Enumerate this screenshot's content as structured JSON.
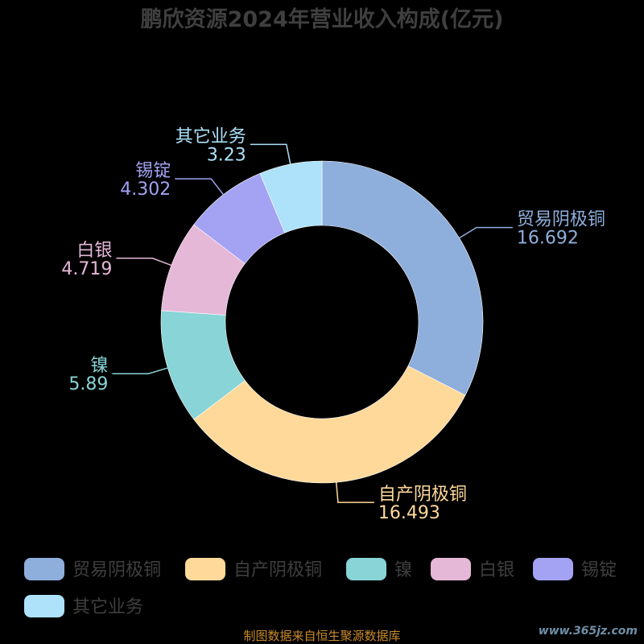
{
  "chart_data": {
    "type": "pie",
    "title": "鹏欣资源2024年营业收入构成(亿元)",
    "categories": [
      "贸易阴极铜",
      "自产阴极铜",
      "镍",
      "白银",
      "锡锭",
      "其它业务"
    ],
    "values": [
      16.692,
      16.493,
      5.89,
      4.719,
      4.302,
      3.23
    ],
    "value_labels": [
      "16.692",
      "16.493",
      "5.89",
      "4.719",
      "4.302",
      "3.23"
    ],
    "colors": [
      "#8eaedb",
      "#ffd99a",
      "#88d4d6",
      "#e6b8d8",
      "#a3a2f3",
      "#ade2fa"
    ],
    "donut": true,
    "start_angle": "top",
    "direction": "clockwise",
    "legend_position": "bottom"
  },
  "source_text": "制图数据来自恒生聚源数据库",
  "watermark": "www.365jz.com"
}
